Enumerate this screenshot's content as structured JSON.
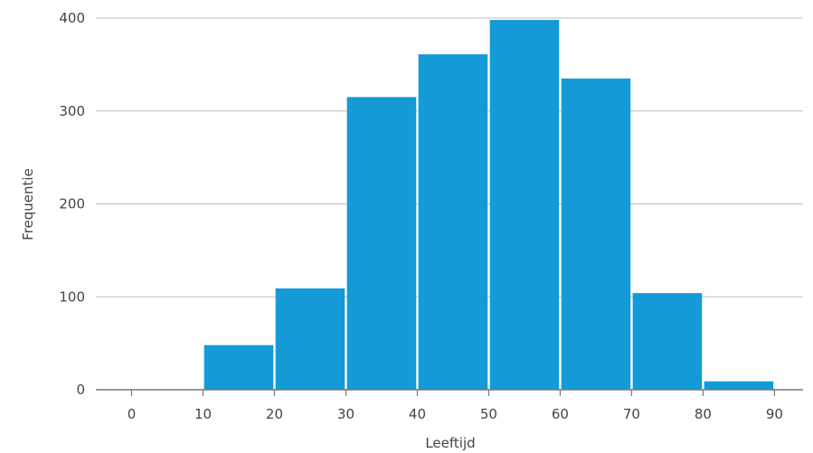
{
  "chart_data": {
    "type": "bar",
    "subtype": "histogram",
    "xlabel": "Leeftijd",
    "ylabel": "Frequentie",
    "bins": [
      [
        0,
        10
      ],
      [
        10,
        20
      ],
      [
        20,
        30
      ],
      [
        30,
        40
      ],
      [
        40,
        50
      ],
      [
        50,
        60
      ],
      [
        60,
        70
      ],
      [
        70,
        80
      ],
      [
        80,
        90
      ]
    ],
    "values": [
      0,
      48,
      109,
      315,
      361,
      398,
      335,
      104,
      9
    ],
    "x_ticks": [
      0,
      10,
      20,
      30,
      40,
      50,
      60,
      70,
      80,
      90
    ],
    "y_ticks": [
      0,
      100,
      200,
      300,
      400
    ],
    "xlim": [
      -5,
      94
    ],
    "ylim": [
      0,
      400
    ],
    "grid": "horizontal",
    "legend": "none",
    "colors": {
      "bar": "#149bd7",
      "grid": "#bdbdbd",
      "axis": "#777777",
      "text": "#444444"
    }
  }
}
